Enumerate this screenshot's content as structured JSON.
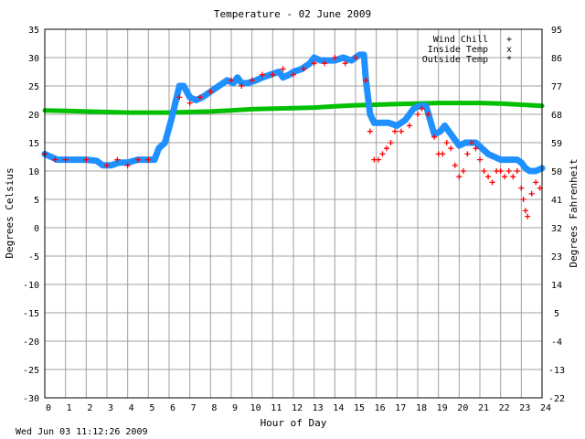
{
  "chart_data": {
    "type": "line",
    "title": "Temperature - 02 June 2009",
    "xlabel": "Hour of Day",
    "ylabel": "Degrees Celsius",
    "y2label": "Degrees Fahrenheit",
    "footer": "Wed Jun 03 11:12:26 2009",
    "xlim": [
      0,
      24
    ],
    "ylim": [
      -30,
      35
    ],
    "y2lim": [
      -22,
      95
    ],
    "grid": true,
    "legend_position": "top-right",
    "x_ticks": [
      "0",
      "1",
      "2",
      "3",
      "4",
      "5",
      "6",
      "7",
      "8",
      "9",
      "10",
      "11",
      "12",
      "13",
      "14",
      "15",
      "16",
      "17",
      "18",
      "19",
      "20",
      "21",
      "22",
      "23",
      "24"
    ],
    "y_ticks": [
      "35",
      "30",
      "25",
      "20",
      "15",
      "10",
      "5",
      "0",
      "-5",
      "-10",
      "-15",
      "-20",
      "-25",
      "-30"
    ],
    "y2_ticks": [
      "95",
      "86",
      "77",
      "68",
      "59",
      "50",
      "41",
      "32",
      "23",
      "14",
      "5",
      "-4",
      "-13",
      "-22"
    ],
    "series": [
      {
        "name": "Wind Chill",
        "color": "#ff0000",
        "marker": "+",
        "points": [
          [
            0,
            13
          ],
          [
            0.5,
            12
          ],
          [
            1,
            12
          ],
          [
            2,
            12
          ],
          [
            3,
            11
          ],
          [
            3.5,
            12
          ],
          [
            4,
            11
          ],
          [
            4.5,
            12
          ],
          [
            5,
            12
          ],
          [
            6.5,
            23
          ],
          [
            7,
            22
          ],
          [
            7.5,
            23
          ],
          [
            8,
            24
          ],
          [
            9,
            26
          ],
          [
            9.5,
            25
          ],
          [
            10,
            26
          ],
          [
            10.5,
            27
          ],
          [
            11,
            27
          ],
          [
            11.5,
            28
          ],
          [
            12,
            27
          ],
          [
            12.5,
            28
          ],
          [
            13,
            29
          ],
          [
            13.5,
            29
          ],
          [
            14,
            30
          ],
          [
            14.5,
            29
          ],
          [
            15,
            30
          ],
          [
            15.5,
            26
          ],
          [
            15.7,
            17
          ],
          [
            15.9,
            12
          ],
          [
            16.1,
            12
          ],
          [
            16.3,
            13
          ],
          [
            16.5,
            14
          ],
          [
            16.7,
            15
          ],
          [
            16.9,
            17
          ],
          [
            17.2,
            17
          ],
          [
            17.6,
            18
          ],
          [
            18,
            20
          ],
          [
            18.2,
            21
          ],
          [
            18.5,
            20
          ],
          [
            18.8,
            16
          ],
          [
            19,
            13
          ],
          [
            19.2,
            13
          ],
          [
            19.4,
            15
          ],
          [
            19.6,
            14
          ],
          [
            19.8,
            11
          ],
          [
            20,
            9
          ],
          [
            20.2,
            10
          ],
          [
            20.4,
            13
          ],
          [
            20.6,
            15
          ],
          [
            20.8,
            14
          ],
          [
            21,
            12
          ],
          [
            21.2,
            10
          ],
          [
            21.4,
            9
          ],
          [
            21.6,
            8
          ],
          [
            21.8,
            10
          ],
          [
            22,
            10
          ],
          [
            22.2,
            9
          ],
          [
            22.4,
            10
          ],
          [
            22.6,
            9
          ],
          [
            22.8,
            10
          ],
          [
            23,
            7
          ],
          [
            23.1,
            5
          ],
          [
            23.2,
            3
          ],
          [
            23.3,
            2
          ],
          [
            23.5,
            6
          ],
          [
            23.7,
            8
          ],
          [
            23.9,
            7
          ]
        ]
      },
      {
        "name": "Inside Temp",
        "color": "#00c000",
        "marker": "x",
        "points": [
          [
            0,
            20.7
          ],
          [
            1,
            20.6
          ],
          [
            2,
            20.5
          ],
          [
            3,
            20.4
          ],
          [
            4,
            20.3
          ],
          [
            5,
            20.3
          ],
          [
            6,
            20.3
          ],
          [
            7,
            20.4
          ],
          [
            8,
            20.5
          ],
          [
            9,
            20.7
          ],
          [
            10,
            20.9
          ],
          [
            11,
            21
          ],
          [
            12,
            21.1
          ],
          [
            13,
            21.2
          ],
          [
            14,
            21.4
          ],
          [
            15,
            21.6
          ],
          [
            16,
            21.7
          ],
          [
            17,
            21.8
          ],
          [
            18,
            21.9
          ],
          [
            19,
            22
          ],
          [
            20,
            22
          ],
          [
            21,
            22
          ],
          [
            22,
            21.9
          ],
          [
            23,
            21.7
          ],
          [
            24,
            21.5
          ]
        ]
      },
      {
        "name": "Outside Temp",
        "color": "#1e90ff",
        "marker": "*",
        "points": [
          [
            0,
            13
          ],
          [
            0.3,
            12.5
          ],
          [
            0.6,
            12
          ],
          [
            1,
            12
          ],
          [
            1.5,
            12
          ],
          [
            2,
            12
          ],
          [
            2.5,
            11.8
          ],
          [
            2.8,
            11
          ],
          [
            3.2,
            11
          ],
          [
            3.6,
            11.5
          ],
          [
            4,
            11.5
          ],
          [
            4.5,
            12
          ],
          [
            5,
            12
          ],
          [
            5.3,
            12
          ],
          [
            5.5,
            14
          ],
          [
            5.8,
            15
          ],
          [
            6.1,
            19
          ],
          [
            6.3,
            22
          ],
          [
            6.5,
            25
          ],
          [
            6.7,
            25
          ],
          [
            7,
            23
          ],
          [
            7.3,
            22.5
          ],
          [
            7.6,
            23
          ],
          [
            8,
            24
          ],
          [
            8.4,
            25
          ],
          [
            8.8,
            26
          ],
          [
            9.1,
            25.5
          ],
          [
            9.3,
            26.5
          ],
          [
            9.5,
            25.5
          ],
          [
            9.8,
            25.5
          ],
          [
            10.2,
            26
          ],
          [
            10.5,
            26.5
          ],
          [
            10.9,
            27
          ],
          [
            11.3,
            27.5
          ],
          [
            11.5,
            26.5
          ],
          [
            11.8,
            27
          ],
          [
            12,
            27.5
          ],
          [
            12.4,
            28
          ],
          [
            12.8,
            29
          ],
          [
            13,
            30
          ],
          [
            13.3,
            29.5
          ],
          [
            13.6,
            29.5
          ],
          [
            14,
            29.5
          ],
          [
            14.4,
            30
          ],
          [
            14.8,
            29.5
          ],
          [
            15.2,
            30.5
          ],
          [
            15.4,
            30.5
          ],
          [
            15.5,
            26
          ],
          [
            15.7,
            20
          ],
          [
            15.9,
            18.5
          ],
          [
            16.2,
            18.5
          ],
          [
            16.6,
            18.5
          ],
          [
            17,
            18
          ],
          [
            17.4,
            19
          ],
          [
            17.8,
            21
          ],
          [
            18.1,
            21.5
          ],
          [
            18.4,
            21.5
          ],
          [
            18.6,
            19
          ],
          [
            18.8,
            16.5
          ],
          [
            19.1,
            17
          ],
          [
            19.3,
            18
          ],
          [
            19.5,
            17
          ],
          [
            19.8,
            15.5
          ],
          [
            20,
            14.5
          ],
          [
            20.3,
            15
          ],
          [
            20.8,
            15
          ],
          [
            21.1,
            14
          ],
          [
            21.4,
            13
          ],
          [
            21.7,
            12.5
          ],
          [
            22,
            12
          ],
          [
            22.4,
            12
          ],
          [
            22.8,
            12
          ],
          [
            23,
            11.5
          ],
          [
            23.2,
            10.5
          ],
          [
            23.4,
            10
          ],
          [
            23.7,
            10
          ],
          [
            24,
            10.5
          ]
        ]
      }
    ]
  }
}
